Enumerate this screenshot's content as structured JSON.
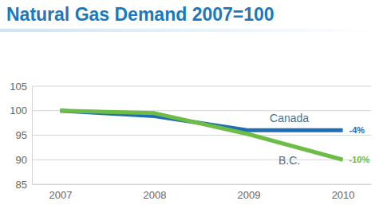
{
  "chart_data": {
    "type": "line",
    "title": "Natural Gas Demand 2007=100",
    "categories": [
      "2007",
      "2008",
      "2009",
      "2010"
    ],
    "series": [
      {
        "name": "Canada",
        "color": "#1f6db3",
        "values": [
          100,
          98.9,
          96,
          96
        ],
        "annotation": "-4%"
      },
      {
        "name": "B.C.",
        "color": "#6cbd45",
        "values": [
          100,
          99.5,
          95.2,
          90
        ],
        "annotation": "-10%"
      }
    ],
    "ylim": [
      85,
      105
    ],
    "yticks": [
      85,
      90,
      95,
      100,
      105
    ],
    "grid": true
  }
}
